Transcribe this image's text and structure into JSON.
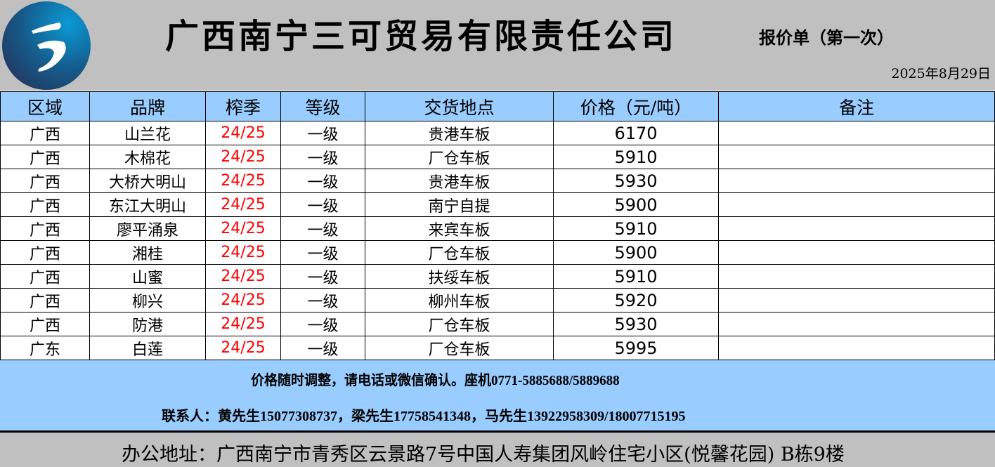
{
  "header": {
    "company": "广西南宁三可贸易有限责任公司",
    "doc_type": "报价单（第一次）",
    "date": "2025年8月29日",
    "logo_icon": "sanke-logo-icon"
  },
  "table": {
    "columns": [
      "区域",
      "品牌",
      "榨季",
      "等级",
      "交货地点",
      "价格（元/吨）",
      "备注"
    ],
    "rows": [
      [
        "广西",
        "山兰花",
        "24/25",
        "一级",
        "贵港车板",
        "6170",
        ""
      ],
      [
        "广西",
        "木棉花",
        "24/25",
        "一级",
        "厂仓车板",
        "5910",
        ""
      ],
      [
        "广西",
        "大桥大明山",
        "24/25",
        "一级",
        "贵港车板",
        "5930",
        ""
      ],
      [
        "广西",
        "东江大明山",
        "24/25",
        "一级",
        "南宁自提",
        "5900",
        ""
      ],
      [
        "广西",
        "廖平涌泉",
        "24/25",
        "一级",
        "来宾车板",
        "5910",
        ""
      ],
      [
        "广西",
        "湘桂",
        "24/25",
        "一级",
        "厂仓车板",
        "5900",
        ""
      ],
      [
        "广西",
        "山蜜",
        "24/25",
        "一级",
        "扶绥车板",
        "5910",
        ""
      ],
      [
        "广西",
        "柳兴",
        "24/25",
        "一级",
        "柳州车板",
        "5920",
        ""
      ],
      [
        "广西",
        "防港",
        "24/25",
        "一级",
        "厂仓车板",
        "5930",
        ""
      ],
      [
        "广东",
        "白莲",
        "24/25",
        "一级",
        "厂仓车板",
        "5995",
        ""
      ]
    ]
  },
  "notes": {
    "line1": "价格随时调整，请电话或微信确认。座机0771-5885688/5889688",
    "line2": "联系人：黄先生15077308737，梁先生17758541348，马先生13922958309/18007715195"
  },
  "footer": {
    "address": "办公地址：广西南宁市青秀区云景路7号中国人寿集团风岭住宅小区(悦馨花园) B栋9楼"
  },
  "colors": {
    "header_bg": "#c0c0c0",
    "table_header_bg": "#99ccff",
    "season_text": "#ff0000"
  }
}
